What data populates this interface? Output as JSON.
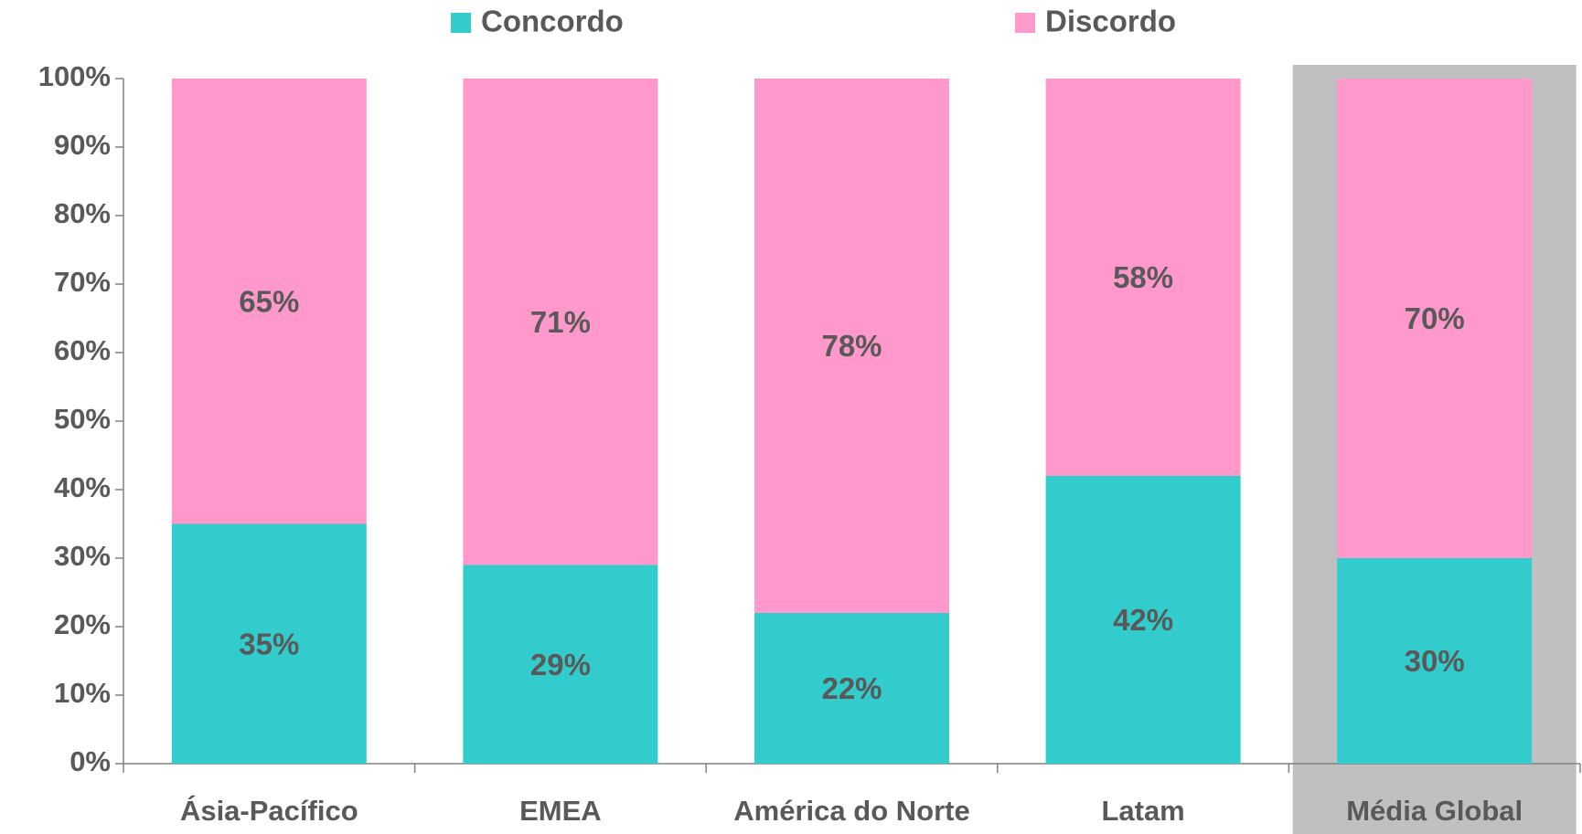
{
  "chart_data": {
    "type": "stacked_bar",
    "categories": [
      "Ásia-Pacífico",
      "EMEA",
      "América do Norte",
      "Latam",
      "Média Global"
    ],
    "series": [
      {
        "name": "Concordo",
        "color": "#33cccc",
        "values": [
          35,
          29,
          22,
          42,
          30
        ],
        "value_labels": [
          "35%",
          "29%",
          "22%",
          "42%",
          "30%"
        ]
      },
      {
        "name": "Discordo",
        "color": "#ff99cc",
        "values": [
          65,
          71,
          78,
          58,
          70
        ],
        "value_labels": [
          "65%",
          "71%",
          "78%",
          "58%",
          "70%"
        ]
      }
    ],
    "ylim": [
      0,
      100
    ],
    "yticks": [
      {
        "value": 0,
        "label": "0%"
      },
      {
        "value": 10,
        "label": "10%"
      },
      {
        "value": 20,
        "label": "20%"
      },
      {
        "value": 30,
        "label": "30%"
      },
      {
        "value": 40,
        "label": "40%"
      },
      {
        "value": 50,
        "label": "50%"
      },
      {
        "value": 60,
        "label": "60%"
      },
      {
        "value": 70,
        "label": "70%"
      },
      {
        "value": 80,
        "label": "80%"
      },
      {
        "value": 90,
        "label": "90%"
      },
      {
        "value": 100,
        "label": "100%"
      }
    ],
    "highlight": "Média Global",
    "highlight_color": "#c0c0c0",
    "legend": "top"
  }
}
